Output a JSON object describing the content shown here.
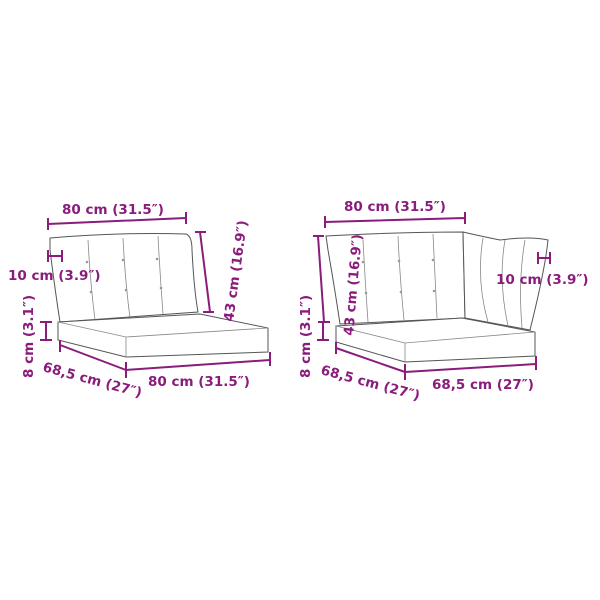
{
  "colors": {
    "dimension": "#8a1c7c",
    "outline": "#555555"
  },
  "left_product": {
    "back_width": "80 cm (31.5″)",
    "back_thickness": "10 cm (3.9″)",
    "back_height": "43 cm (16.9″)",
    "seat_height": "8 cm (3.1″)",
    "seat_depth": "68,5 cm (27″)",
    "seat_width": "80 cm (31.5″)"
  },
  "right_product": {
    "back_width": "80 cm (31.5″)",
    "back_height": "43 cm (16.9″)",
    "side_thickness": "10 cm (3.9″)",
    "seat_height": "8 cm (3.1″)",
    "seat_depth": "68,5 cm (27″)",
    "seat_width": "68,5 cm (27″)"
  }
}
